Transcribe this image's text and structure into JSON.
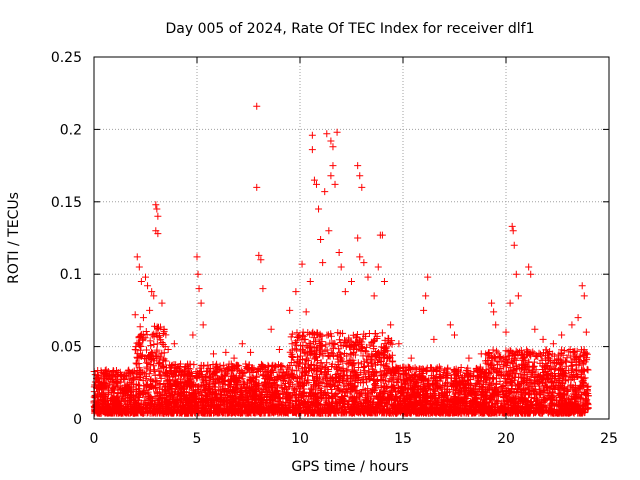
{
  "chart_data": {
    "type": "scatter",
    "title": "Day 005 of 2024, Rate Of TEC Index for receiver dlf1",
    "xlabel": "GPS time / hours",
    "ylabel": "ROTI / TECUs",
    "xlim": [
      0,
      25
    ],
    "ylim": [
      0,
      0.25
    ],
    "xticks": [
      "0",
      "5",
      "10",
      "15",
      "20",
      "25"
    ],
    "yticks": [
      "0",
      "0.05",
      "0.1",
      "0.15",
      "0.2",
      "0.25"
    ],
    "grid": true,
    "marker": "+",
    "series_color": "#ff0000",
    "series": [
      {
        "name": "ROTI",
        "points": [
          [
            2.1,
            0.112
          ],
          [
            2.2,
            0.105
          ],
          [
            2.3,
            0.095
          ],
          [
            2.5,
            0.098
          ],
          [
            2.6,
            0.092
          ],
          [
            2.8,
            0.088
          ],
          [
            2.9,
            0.085
          ],
          [
            3.0,
            0.148
          ],
          [
            3.05,
            0.145
          ],
          [
            3.1,
            0.14
          ],
          [
            3.0,
            0.13
          ],
          [
            3.1,
            0.128
          ],
          [
            2.0,
            0.072
          ],
          [
            2.4,
            0.07
          ],
          [
            2.7,
            0.075
          ],
          [
            3.3,
            0.08
          ],
          [
            3.4,
            0.062
          ],
          [
            3.6,
            0.048
          ],
          [
            3.9,
            0.052
          ],
          [
            4.2,
            0.038
          ],
          [
            4.8,
            0.058
          ],
          [
            5.0,
            0.112
          ],
          [
            5.05,
            0.1
          ],
          [
            5.1,
            0.09
          ],
          [
            5.2,
            0.08
          ],
          [
            5.3,
            0.065
          ],
          [
            5.8,
            0.045
          ],
          [
            6.4,
            0.046
          ],
          [
            6.8,
            0.042
          ],
          [
            7.2,
            0.052
          ],
          [
            7.6,
            0.046
          ],
          [
            7.9,
            0.216
          ],
          [
            7.9,
            0.16
          ],
          [
            8.0,
            0.113
          ],
          [
            8.1,
            0.11
          ],
          [
            8.2,
            0.09
          ],
          [
            8.6,
            0.062
          ],
          [
            9.0,
            0.048
          ],
          [
            9.5,
            0.075
          ],
          [
            9.8,
            0.088
          ],
          [
            10.1,
            0.107
          ],
          [
            10.3,
            0.074
          ],
          [
            10.5,
            0.095
          ],
          [
            10.6,
            0.196
          ],
          [
            10.6,
            0.186
          ],
          [
            10.7,
            0.165
          ],
          [
            10.8,
            0.162
          ],
          [
            10.9,
            0.145
          ],
          [
            11.0,
            0.124
          ],
          [
            11.1,
            0.108
          ],
          [
            11.2,
            0.157
          ],
          [
            11.3,
            0.197
          ],
          [
            11.5,
            0.192
          ],
          [
            11.6,
            0.188
          ],
          [
            11.8,
            0.198
          ],
          [
            11.5,
            0.168
          ],
          [
            11.6,
            0.175
          ],
          [
            11.7,
            0.162
          ],
          [
            11.4,
            0.13
          ],
          [
            11.9,
            0.115
          ],
          [
            12.0,
            0.105
          ],
          [
            12.2,
            0.088
          ],
          [
            12.5,
            0.095
          ],
          [
            12.8,
            0.175
          ],
          [
            12.9,
            0.168
          ],
          [
            13.0,
            0.16
          ],
          [
            12.8,
            0.125
          ],
          [
            12.9,
            0.112
          ],
          [
            13.1,
            0.108
          ],
          [
            13.3,
            0.098
          ],
          [
            13.6,
            0.085
          ],
          [
            13.9,
            0.127
          ],
          [
            14.0,
            0.127
          ],
          [
            13.8,
            0.105
          ],
          [
            14.1,
            0.095
          ],
          [
            14.4,
            0.065
          ],
          [
            14.8,
            0.052
          ],
          [
            15.4,
            0.042
          ],
          [
            16.0,
            0.075
          ],
          [
            16.1,
            0.085
          ],
          [
            16.2,
            0.098
          ],
          [
            16.5,
            0.055
          ],
          [
            17.3,
            0.065
          ],
          [
            17.5,
            0.058
          ],
          [
            18.2,
            0.042
          ],
          [
            18.8,
            0.045
          ],
          [
            19.3,
            0.08
          ],
          [
            19.4,
            0.074
          ],
          [
            19.5,
            0.065
          ],
          [
            20.0,
            0.06
          ],
          [
            20.2,
            0.08
          ],
          [
            20.3,
            0.133
          ],
          [
            20.35,
            0.13
          ],
          [
            20.4,
            0.12
          ],
          [
            20.5,
            0.1
          ],
          [
            20.6,
            0.085
          ],
          [
            21.1,
            0.105
          ],
          [
            21.2,
            0.1
          ],
          [
            21.4,
            0.062
          ],
          [
            21.8,
            0.055
          ],
          [
            22.3,
            0.052
          ],
          [
            22.7,
            0.058
          ],
          [
            23.2,
            0.065
          ],
          [
            23.5,
            0.07
          ],
          [
            23.7,
            0.092
          ],
          [
            23.8,
            0.085
          ],
          [
            23.9,
            0.06
          ]
        ]
      }
    ],
    "dense_band": [
      {
        "x": [
          0.0,
          2.0
        ],
        "ymin": 0.004,
        "ymax": 0.034
      },
      {
        "x": [
          2.0,
          3.5
        ],
        "ymin": 0.004,
        "ymax": 0.065
      },
      {
        "x": [
          3.5,
          9.5
        ],
        "ymin": 0.004,
        "ymax": 0.038
      },
      {
        "x": [
          9.5,
          14.5
        ],
        "ymin": 0.004,
        "ymax": 0.06
      },
      {
        "x": [
          14.5,
          19.0
        ],
        "ymin": 0.004,
        "ymax": 0.036
      },
      {
        "x": [
          19.0,
          24.0
        ],
        "ymin": 0.004,
        "ymax": 0.048
      }
    ]
  }
}
